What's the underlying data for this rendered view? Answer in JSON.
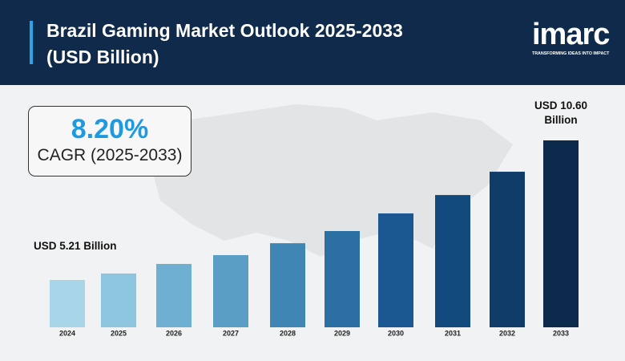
{
  "brand": {
    "name": "imarc",
    "tagline": "TRANSFORMING IDEAS INTO IMPACT"
  },
  "chart_data": {
    "type": "bar",
    "title": "Brazil Gaming Market Outlook 2025-2033 (USD Billion)",
    "cagr": {
      "label": "8.20%",
      "caption": "CAGR (2025-2033)"
    },
    "categories": [
      "2024",
      "2025",
      "2026",
      "2027",
      "2028",
      "2029",
      "2030",
      "2031",
      "2032",
      "2033"
    ],
    "values": [
      5.21,
      5.46,
      5.83,
      6.17,
      6.63,
      7.1,
      7.78,
      8.49,
      9.39,
      10.6
    ],
    "value_labels": [
      "USD 5.21 Billion",
      null,
      null,
      null,
      null,
      null,
      null,
      null,
      null,
      "USD 10.60 Billion"
    ],
    "colors": [
      "#a9d5e8",
      "#8fc6df",
      "#6fb0d2",
      "#5a9ec6",
      "#3f86b4",
      "#2c6fa3",
      "#1b5791",
      "#134a7e",
      "#0f3c69",
      "#0c2a4c"
    ]
  }
}
